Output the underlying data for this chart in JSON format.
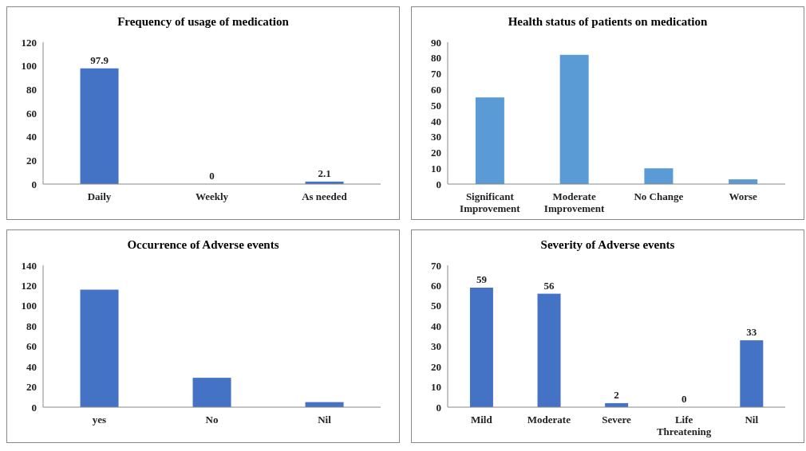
{
  "chart_data": [
    {
      "type": "bar",
      "title": "Frequency of usage of medication",
      "categories": [
        "Daily",
        "Weekly",
        "As needed"
      ],
      "values": [
        97.9,
        0,
        2.1
      ],
      "color": "#4472c4",
      "ylim": [
        0,
        120
      ],
      "yticks": [
        0,
        20,
        40,
        60,
        80,
        100,
        120
      ],
      "grid": false,
      "data_labels": true
    },
    {
      "type": "bar",
      "title": "Health status of patients on medication",
      "categories": [
        "Significant Improvement",
        "Moderate Improvement",
        "No Change",
        "Worse"
      ],
      "values": [
        55,
        82,
        10,
        3
      ],
      "color": "#5b9bd5",
      "ylim": [
        0,
        90
      ],
      "yticks": [
        0,
        10,
        20,
        30,
        40,
        50,
        60,
        70,
        80,
        90
      ],
      "grid": false
    },
    {
      "type": "bar",
      "title": "Occurrence of Adverse events",
      "categories": [
        "yes",
        "No",
        "Nil"
      ],
      "values": [
        116,
        29,
        5
      ],
      "color": "#4472c4",
      "ylim": [
        0,
        140
      ],
      "yticks": [
        0,
        20,
        40,
        60,
        80,
        100,
        120,
        140
      ],
      "grid": false
    },
    {
      "type": "bar",
      "title": "Severity of Adverse events",
      "categories": [
        "Mild",
        "Moderate",
        "Severe",
        "Life Threatening",
        "Nil"
      ],
      "values": [
        59,
        56,
        2,
        0,
        33
      ],
      "color": "#4472c4",
      "ylim": [
        0,
        70
      ],
      "yticks": [
        0,
        10,
        20,
        30,
        40,
        50,
        60,
        70
      ],
      "grid": false,
      "data_labels": true
    }
  ]
}
